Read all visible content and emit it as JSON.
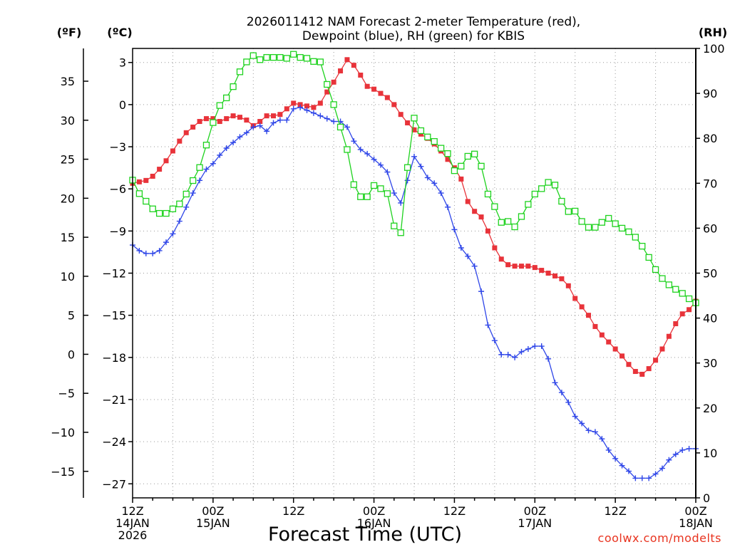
{
  "chart_data": {
    "type": "line",
    "title_line1": "2026011412 NAM Forecast 2-meter Temperature (red),",
    "title_line2": "Dewpoint (blue), RH (green) for KBIS",
    "xlabel": "Forecast Time (UTC)",
    "credit": "coolwx.com/modelts",
    "unit_f": "(ºF)",
    "unit_c": "(ºC)",
    "unit_rh": "(RH)",
    "x_range_hours": [
      0,
      84
    ],
    "y_celsius_range": [
      -28,
      4
    ],
    "y_rh_range": [
      0,
      100
    ],
    "celsius_ticks": [
      "3",
      "0",
      "-3",
      "-6",
      "-9",
      "-12",
      "-15",
      "-18",
      "-21",
      "-24",
      "-27"
    ],
    "fahrenheit_ticks": [
      "35",
      "30",
      "25",
      "20",
      "15",
      "10",
      "5",
      "0",
      "-5",
      "-10",
      "-15"
    ],
    "rh_ticks": [
      "100",
      "90",
      "80",
      "70",
      "60",
      "50",
      "40",
      "30",
      "20",
      "10",
      "0"
    ],
    "x_ticks": [
      {
        "hour": 0,
        "line1": "12Z",
        "line2": "14JAN",
        "line3": "2026"
      },
      {
        "hour": 12,
        "line1": "00Z",
        "line2": "15JAN",
        "line3": ""
      },
      {
        "hour": 24,
        "line1": "12Z",
        "line2": "",
        "line3": ""
      },
      {
        "hour": 36,
        "line1": "00Z",
        "line2": "16JAN",
        "line3": ""
      },
      {
        "hour": 48,
        "line1": "12Z",
        "line2": "",
        "line3": ""
      },
      {
        "hour": 60,
        "line1": "00Z",
        "line2": "17JAN",
        "line3": ""
      },
      {
        "hour": 72,
        "line1": "12Z",
        "line2": "",
        "line3": ""
      },
      {
        "hour": 84,
        "line1": "00Z",
        "line2": "18JAN",
        "line3": ""
      }
    ],
    "series": [
      {
        "name": "Temperature",
        "axis": "celsius",
        "color": "#e8333a",
        "marker": "filled-square",
        "points": [
          [
            0,
            -5.6
          ],
          [
            1,
            -5.5
          ],
          [
            2,
            -5.4
          ],
          [
            3,
            -5.1
          ],
          [
            4,
            -4.6
          ],
          [
            5,
            -4.0
          ],
          [
            6,
            -3.3
          ],
          [
            7,
            -2.6
          ],
          [
            8,
            -2.0
          ],
          [
            9,
            -1.6
          ],
          [
            10,
            -1.2
          ],
          [
            11,
            -1.0
          ],
          [
            12,
            -1.0
          ],
          [
            13,
            -1.2
          ],
          [
            14,
            -1.0
          ],
          [
            15,
            -0.8
          ],
          [
            16,
            -0.9
          ],
          [
            17,
            -1.1
          ],
          [
            18,
            -1.5
          ],
          [
            19,
            -1.2
          ],
          [
            20,
            -0.8
          ],
          [
            21,
            -0.8
          ],
          [
            22,
            -0.7
          ],
          [
            23,
            -0.3
          ],
          [
            24,
            0.1
          ],
          [
            25,
            0.0
          ],
          [
            26,
            -0.1
          ],
          [
            27,
            -0.2
          ],
          [
            28,
            0.1
          ],
          [
            29,
            0.9
          ],
          [
            30,
            1.6
          ],
          [
            31,
            2.4
          ],
          [
            32,
            3.2
          ],
          [
            33,
            2.8
          ],
          [
            34,
            2.1
          ],
          [
            35,
            1.3
          ],
          [
            36,
            1.1
          ],
          [
            37,
            0.8
          ],
          [
            38,
            0.5
          ],
          [
            39,
            0.0
          ],
          [
            40,
            -0.7
          ],
          [
            41,
            -1.3
          ],
          [
            42,
            -1.8
          ],
          [
            43,
            -2.1
          ],
          [
            44,
            -2.4
          ],
          [
            45,
            -2.8
          ],
          [
            46,
            -3.3
          ],
          [
            47,
            -3.9
          ],
          [
            48,
            -4.5
          ],
          [
            49,
            -5.3
          ],
          [
            50,
            -6.9
          ],
          [
            51,
            -7.6
          ],
          [
            52,
            -8.0
          ],
          [
            53,
            -9.0
          ],
          [
            54,
            -10.2
          ],
          [
            55,
            -11.0
          ],
          [
            56,
            -11.4
          ],
          [
            57,
            -11.5
          ],
          [
            58,
            -11.5
          ],
          [
            59,
            -11.5
          ],
          [
            60,
            -11.6
          ],
          [
            61,
            -11.8
          ],
          [
            62,
            -12.0
          ],
          [
            63,
            -12.2
          ],
          [
            64,
            -12.4
          ],
          [
            65,
            -12.9
          ],
          [
            66,
            -13.8
          ],
          [
            67,
            -14.4
          ],
          [
            68,
            -15.0
          ],
          [
            69,
            -15.8
          ],
          [
            70,
            -16.4
          ],
          [
            71,
            -16.9
          ],
          [
            72,
            -17.4
          ],
          [
            73,
            -17.9
          ],
          [
            74,
            -18.5
          ],
          [
            75,
            -19.0
          ],
          [
            76,
            -19.2
          ],
          [
            77,
            -18.8
          ],
          [
            78,
            -18.2
          ],
          [
            79,
            -17.4
          ],
          [
            80,
            -16.5
          ],
          [
            81,
            -15.6
          ],
          [
            82,
            -14.9
          ],
          [
            83,
            -14.6
          ],
          [
            84,
            -14.0
          ]
        ]
      },
      {
        "name": "Dewpoint",
        "axis": "celsius",
        "color": "#2f46e8",
        "marker": "plus",
        "points": [
          [
            0,
            -10.0
          ],
          [
            1,
            -10.4
          ],
          [
            2,
            -10.6
          ],
          [
            3,
            -10.6
          ],
          [
            4,
            -10.4
          ],
          [
            5,
            -9.8
          ],
          [
            6,
            -9.2
          ],
          [
            7,
            -8.3
          ],
          [
            8,
            -7.3
          ],
          [
            9,
            -6.3
          ],
          [
            10,
            -5.4
          ],
          [
            11,
            -4.6
          ],
          [
            12,
            -4.2
          ],
          [
            13,
            -3.6
          ],
          [
            14,
            -3.1
          ],
          [
            15,
            -2.7
          ],
          [
            16,
            -2.3
          ],
          [
            17,
            -2.0
          ],
          [
            18,
            -1.6
          ],
          [
            19,
            -1.5
          ],
          [
            20,
            -1.9
          ],
          [
            21,
            -1.3
          ],
          [
            22,
            -1.1
          ],
          [
            23,
            -1.1
          ],
          [
            24,
            -0.3
          ],
          [
            25,
            -0.2
          ],
          [
            26,
            -0.4
          ],
          [
            27,
            -0.6
          ],
          [
            28,
            -0.8
          ],
          [
            29,
            -1.0
          ],
          [
            30,
            -1.2
          ],
          [
            31,
            -1.2
          ],
          [
            32,
            -1.6
          ],
          [
            33,
            -2.6
          ],
          [
            34,
            -3.2
          ],
          [
            35,
            -3.5
          ],
          [
            36,
            -3.9
          ],
          [
            37,
            -4.3
          ],
          [
            38,
            -4.8
          ],
          [
            39,
            -6.3
          ],
          [
            40,
            -7.0
          ],
          [
            41,
            -5.4
          ],
          [
            42,
            -3.7
          ],
          [
            43,
            -4.4
          ],
          [
            44,
            -5.2
          ],
          [
            45,
            -5.6
          ],
          [
            46,
            -6.3
          ],
          [
            47,
            -7.3
          ],
          [
            48,
            -8.9
          ],
          [
            49,
            -10.2
          ],
          [
            50,
            -10.8
          ],
          [
            51,
            -11.5
          ],
          [
            52,
            -13.3
          ],
          [
            53,
            -15.7
          ],
          [
            54,
            -16.8
          ],
          [
            55,
            -17.8
          ],
          [
            56,
            -17.8
          ],
          [
            57,
            -18.0
          ],
          [
            58,
            -17.6
          ],
          [
            59,
            -17.4
          ],
          [
            60,
            -17.2
          ],
          [
            61,
            -17.2
          ],
          [
            62,
            -18.1
          ],
          [
            63,
            -19.8
          ],
          [
            64,
            -20.5
          ],
          [
            65,
            -21.2
          ],
          [
            66,
            -22.2
          ],
          [
            67,
            -22.7
          ],
          [
            68,
            -23.2
          ],
          [
            69,
            -23.3
          ],
          [
            70,
            -23.8
          ],
          [
            71,
            -24.6
          ],
          [
            72,
            -25.2
          ],
          [
            73,
            -25.7
          ],
          [
            74,
            -26.1
          ],
          [
            75,
            -26.6
          ],
          [
            76,
            -26.6
          ],
          [
            77,
            -26.6
          ],
          [
            78,
            -26.3
          ],
          [
            79,
            -25.9
          ],
          [
            80,
            -25.3
          ],
          [
            81,
            -24.9
          ],
          [
            82,
            -24.6
          ],
          [
            83,
            -24.5
          ],
          [
            84,
            -24.5
          ]
        ]
      },
      {
        "name": "RH",
        "axis": "rh",
        "color": "#1ed21e",
        "marker": "open-square",
        "points": [
          [
            0,
            70.7
          ],
          [
            1,
            67.7
          ],
          [
            2,
            66.0
          ],
          [
            3,
            64.3
          ],
          [
            4,
            63.3
          ],
          [
            5,
            63.3
          ],
          [
            6,
            64.3
          ],
          [
            7,
            65.4
          ],
          [
            8,
            67.6
          ],
          [
            9,
            70.6
          ],
          [
            10,
            73.5
          ],
          [
            11,
            78.5
          ],
          [
            12,
            83.5
          ],
          [
            13,
            87.3
          ],
          [
            14,
            89.0
          ],
          [
            15,
            91.5
          ],
          [
            16,
            94.8
          ],
          [
            17,
            97.0
          ],
          [
            18,
            98.4
          ],
          [
            19,
            97.5
          ],
          [
            20,
            98.0
          ],
          [
            21,
            98.0
          ],
          [
            22,
            98.0
          ],
          [
            23,
            97.8
          ],
          [
            24,
            98.7
          ],
          [
            25,
            98.0
          ],
          [
            26,
            97.8
          ],
          [
            27,
            97.1
          ],
          [
            28,
            97.0
          ],
          [
            29,
            92.0
          ],
          [
            30,
            87.5
          ],
          [
            31,
            82.5
          ],
          [
            32,
            77.5
          ],
          [
            33,
            69.7
          ],
          [
            34,
            67.0
          ],
          [
            35,
            67.0
          ],
          [
            36,
            69.5
          ],
          [
            37,
            68.8
          ],
          [
            38,
            67.7
          ],
          [
            39,
            60.5
          ],
          [
            40,
            59.0
          ],
          [
            41,
            73.5
          ],
          [
            42,
            84.5
          ],
          [
            43,
            81.7
          ],
          [
            44,
            80.3
          ],
          [
            45,
            79.3
          ],
          [
            46,
            77.8
          ],
          [
            47,
            76.6
          ],
          [
            48,
            72.8
          ],
          [
            49,
            73.8
          ],
          [
            50,
            76.0
          ],
          [
            51,
            76.5
          ],
          [
            52,
            73.8
          ],
          [
            53,
            67.6
          ],
          [
            54,
            64.8
          ],
          [
            55,
            61.3
          ],
          [
            56,
            61.5
          ],
          [
            57,
            60.3
          ],
          [
            58,
            62.6
          ],
          [
            59,
            65.3
          ],
          [
            60,
            67.6
          ],
          [
            61,
            68.8
          ],
          [
            62,
            70.2
          ],
          [
            63,
            69.6
          ],
          [
            64,
            66.0
          ],
          [
            65,
            63.7
          ],
          [
            66,
            63.8
          ],
          [
            67,
            61.5
          ],
          [
            68,
            60.2
          ],
          [
            69,
            60.2
          ],
          [
            70,
            61.3
          ],
          [
            71,
            62.2
          ],
          [
            72,
            61.0
          ],
          [
            73,
            60.0
          ],
          [
            74,
            59.2
          ],
          [
            75,
            58.0
          ],
          [
            76,
            56.0
          ],
          [
            77,
            53.5
          ],
          [
            78,
            50.8
          ],
          [
            79,
            48.8
          ],
          [
            80,
            47.4
          ],
          [
            81,
            46.4
          ],
          [
            82,
            45.5
          ],
          [
            83,
            44.3
          ],
          [
            84,
            43.4
          ]
        ]
      }
    ]
  }
}
